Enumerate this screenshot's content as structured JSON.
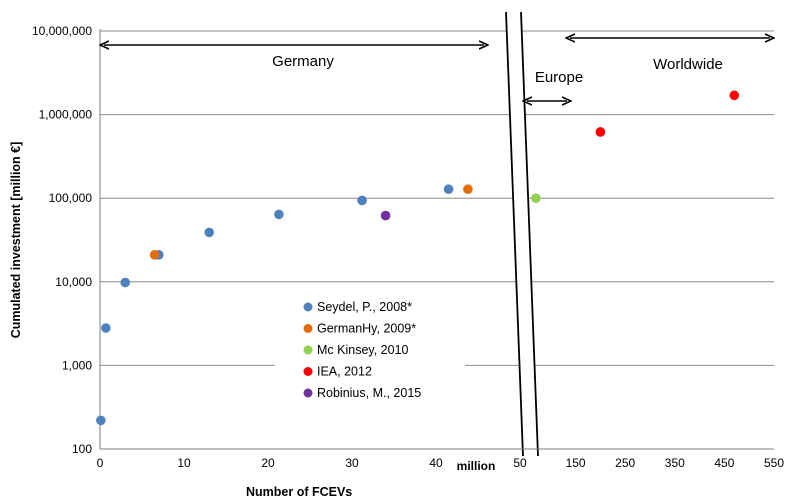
{
  "chart_data": {
    "type": "scatter",
    "xlabel": "Number of FCEVs",
    "ylabel": "Cumulated investment [million €]",
    "yscale": "log",
    "ylim": [
      100,
      10000000
    ],
    "y_ticks": [
      100,
      1000,
      10000,
      100000,
      1000000,
      10000000
    ],
    "y_tick_labels": [
      "100",
      "1,000",
      "10,000",
      "100,000",
      "1,000,000",
      "10,000,000"
    ],
    "x_axis_left": {
      "unit_label": "million",
      "xlim": [
        0,
        50
      ],
      "ticks": [
        0,
        10,
        20,
        30,
        40,
        50
      ],
      "tick_labels": [
        "0",
        "10",
        "20",
        "30",
        "40",
        "50"
      ]
    },
    "x_axis_right": {
      "xlim": [
        50,
        550
      ],
      "ticks": [
        50,
        150,
        250,
        350,
        450,
        550
      ],
      "tick_labels": [
        "50",
        "150",
        "250",
        "350",
        "450",
        "550"
      ]
    },
    "grid": "horizontal",
    "axis_break": true,
    "regions": [
      {
        "label": "Germany",
        "x_start": 0,
        "x_end": 45,
        "axis": "left"
      },
      {
        "label": "Europe",
        "x_start": 50,
        "x_end": 130,
        "axis": "right"
      },
      {
        "label": "Worldwide",
        "x_start": 150,
        "x_end": 550,
        "axis": "right"
      }
    ],
    "legend_position": "center-left",
    "series": [
      {
        "name": "Seydel, P., 2008*",
        "color": "#4f81bd",
        "axis": "left",
        "points": [
          [
            0.1,
            220
          ],
          [
            0.7,
            2800
          ],
          [
            3,
            9800
          ],
          [
            7,
            21000
          ],
          [
            13,
            39000
          ],
          [
            21.3,
            64000
          ],
          [
            31.2,
            94000
          ],
          [
            41.5,
            128000
          ]
        ]
      },
      {
        "name": "GermanHy, 2009*",
        "color": "#e46c0a",
        "axis": "left",
        "points": [
          [
            6.5,
            21000
          ],
          [
            43.8,
            128000
          ]
        ]
      },
      {
        "name": "Mc Kinsey, 2010",
        "color": "#92d050",
        "axis": "right",
        "points": [
          [
            70,
            100000
          ]
        ]
      },
      {
        "name": "IEA, 2012",
        "color": "#ff0000",
        "axis": "right",
        "points": [
          [
            200,
            620000
          ],
          [
            470,
            1700000
          ]
        ]
      },
      {
        "name": "Robinius, M., 2015",
        "color": "#7030a0",
        "axis": "left",
        "points": [
          [
            34,
            62000
          ]
        ]
      }
    ]
  }
}
